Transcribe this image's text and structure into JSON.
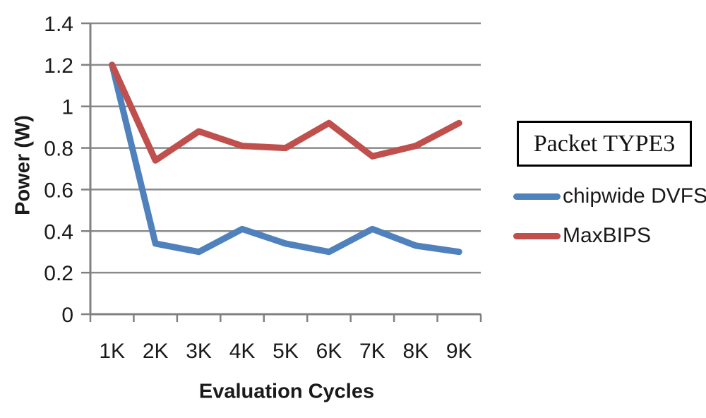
{
  "chart_data": {
    "type": "line",
    "title": "",
    "categories": [
      "1K",
      "2K",
      "3K",
      "4K",
      "5K",
      "6K",
      "7K",
      "8K",
      "9K"
    ],
    "series": [
      {
        "name": "chipwide DVFS",
        "color": "#4F81BD",
        "values": [
          1.2,
          0.34,
          0.3,
          0.41,
          0.34,
          0.3,
          0.41,
          0.33,
          0.3
        ]
      },
      {
        "name": "MaxBIPS",
        "color": "#C0504D",
        "values": [
          1.2,
          0.74,
          0.88,
          0.81,
          0.8,
          0.92,
          0.76,
          0.81,
          0.92
        ]
      }
    ],
    "xlabel": "Evaluation Cycles",
    "ylabel": "Power (W)",
    "ylim": [
      0,
      1.4
    ],
    "ytick_step": 0.2,
    "yticks": [
      "0",
      "0.2",
      "0.4",
      "0.6",
      "0.8",
      "1",
      "1.2",
      "1.4"
    ],
    "grid": true,
    "legend": {
      "title": "Packet TYPE3",
      "position": "right"
    }
  },
  "colors": {
    "grid": "#8a8a8a",
    "axis": "#808080",
    "tick_text": "#1a1a1a",
    "series_blue": "#4F81BD",
    "series_red": "#C0504D"
  }
}
